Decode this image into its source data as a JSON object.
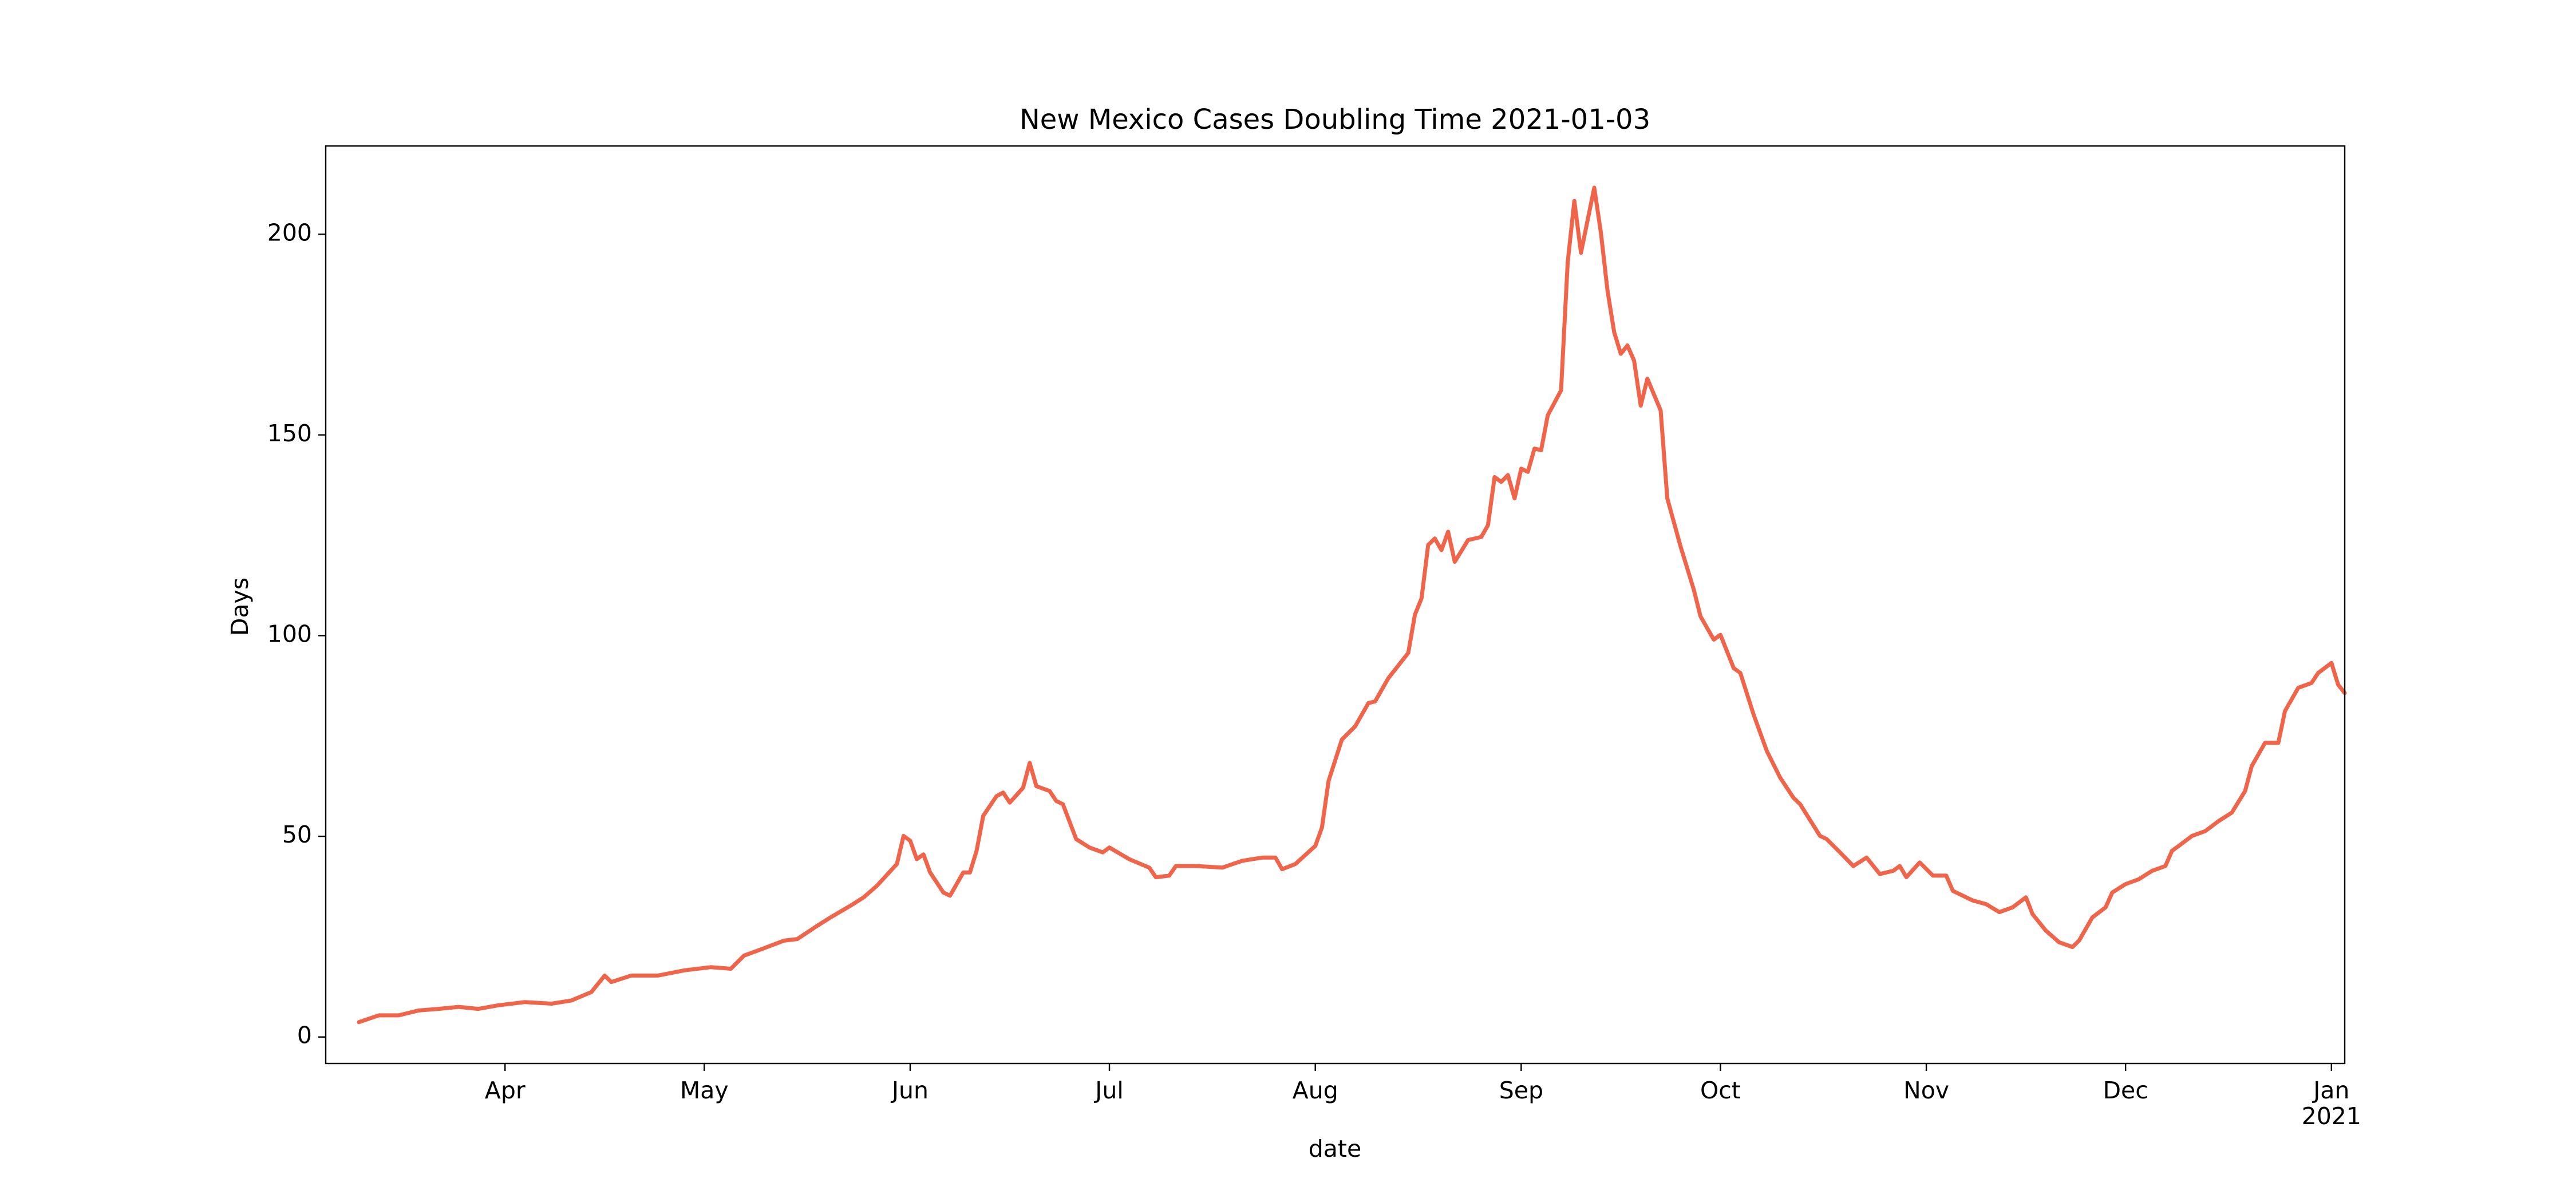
{
  "chart_data": {
    "type": "line",
    "title": "New Mexico Cases Doubling Time 2021-01-03",
    "xlabel": "date",
    "ylabel": "Days",
    "color": "#f0644a",
    "xlim": [
      64,
      368
    ],
    "xticks": [
      {
        "value": 91,
        "label": "Apr"
      },
      {
        "value": 121,
        "label": "May"
      },
      {
        "value": 152,
        "label": "Jun"
      },
      {
        "value": 182,
        "label": "Jul"
      },
      {
        "value": 213,
        "label": "Aug"
      },
      {
        "value": 244,
        "label": "Sep"
      },
      {
        "value": 274,
        "label": "Oct"
      },
      {
        "value": 305,
        "label": "Nov"
      },
      {
        "value": 335,
        "label": "Dec"
      },
      {
        "value": 366,
        "label": "Jan\n2021"
      }
    ],
    "ylim": [
      -6.6,
      222
    ],
    "yticks": [
      0,
      50,
      100,
      150,
      200
    ],
    "x": [
      69,
      72,
      75,
      78,
      81,
      84,
      87,
      90,
      94,
      98,
      101,
      104,
      106,
      107,
      110,
      114,
      118,
      122,
      125,
      127,
      129,
      133,
      135,
      138,
      140,
      143,
      145,
      147,
      150,
      151,
      152,
      153,
      154,
      155,
      157,
      158,
      160,
      161,
      162,
      163,
      165,
      166,
      167,
      169,
      170,
      171,
      173,
      174,
      175,
      177,
      179,
      181,
      182,
      185,
      188,
      189,
      191,
      192,
      195,
      199,
      202,
      205,
      207,
      208,
      210,
      213,
      214,
      215,
      217,
      219,
      221,
      222,
      224,
      226,
      227,
      228,
      229,
      230,
      231,
      232,
      233,
      234,
      236,
      238,
      239,
      240,
      241,
      242,
      243,
      244,
      245,
      246,
      247,
      248,
      250,
      251,
      252,
      253,
      255,
      256,
      257,
      258,
      259,
      260,
      261,
      262,
      263,
      265,
      266,
      268,
      270,
      271,
      273,
      274,
      276,
      277,
      279,
      281,
      283,
      285,
      286,
      289,
      290,
      292,
      294,
      296,
      298,
      300,
      301,
      302,
      304,
      306,
      308,
      309,
      312,
      314,
      316,
      318,
      320,
      321,
      323,
      325,
      327,
      328,
      330,
      332,
      333,
      335,
      337,
      339,
      341,
      342,
      343,
      345,
      347,
      349,
      351,
      353,
      354,
      356,
      358,
      359,
      361,
      363,
      364,
      366,
      367,
      368
    ],
    "values": [
      3.7,
      5.4,
      5.4,
      6.6,
      7.0,
      7.5,
      7.0,
      7.9,
      8.7,
      8.3,
      9.1,
      11.2,
      15.3,
      13.7,
      15.3,
      15.3,
      16.6,
      17.4,
      17.0,
      20.3,
      21.5,
      24.0,
      24.4,
      27.7,
      29.8,
      32.7,
      34.8,
      37.7,
      43.1,
      50.1,
      48.9,
      44.3,
      45.5,
      41.0,
      36.0,
      35.2,
      41.0,
      41.0,
      46.4,
      55.1,
      60.0,
      60.9,
      58.4,
      62.1,
      68.3,
      62.5,
      61.3,
      58.8,
      58.0,
      49.3,
      47.2,
      46.0,
      47.2,
      44.3,
      42.2,
      39.8,
      40.2,
      42.6,
      42.6,
      42.2,
      43.9,
      44.7,
      44.7,
      41.8,
      43.1,
      47.6,
      52.2,
      63.8,
      74.1,
      77.4,
      83.2,
      83.6,
      89.4,
      93.6,
      95.7,
      105.2,
      109.3,
      122.6,
      124.2,
      121.3,
      125.9,
      118.4,
      123.8,
      124.6,
      127.5,
      139.5,
      138.3,
      140.0,
      134.2,
      141.6,
      140.8,
      146.6,
      146.2,
      154.9,
      161.1,
      193.0,
      208.3,
      195.4,
      211.6,
      200.4,
      185.9,
      175.6,
      170.2,
      172.3,
      168.5,
      157.3,
      164.0,
      156.1,
      134.2,
      122.2,
      111.4,
      104.8,
      99.0,
      100.2,
      91.9,
      90.7,
      80.3,
      71.2,
      64.6,
      59.6,
      58.0,
      50.1,
      49.3,
      46.0,
      42.6,
      44.7,
      40.6,
      41.4,
      42.6,
      39.8,
      43.5,
      40.2,
      40.2,
      36.4,
      34.0,
      33.1,
      31.1,
      32.3,
      34.8,
      30.6,
      26.5,
      23.6,
      22.4,
      24.0,
      29.8,
      32.3,
      36.0,
      38.1,
      39.3,
      41.4,
      42.6,
      46.4,
      47.6,
      50.1,
      51.3,
      53.8,
      55.9,
      61.3,
      67.5,
      73.3,
      73.3,
      81.2,
      87.0,
      88.2,
      90.7,
      93.2,
      87.8,
      85.7
    ]
  }
}
